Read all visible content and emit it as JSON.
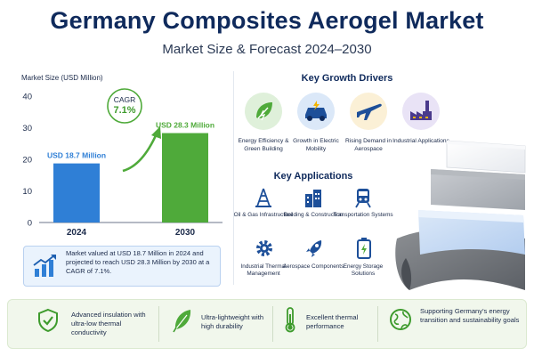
{
  "header": {
    "title": "Germany Composites Aerogel Market",
    "subtitle": "Market Size & Forecast 2024–2030"
  },
  "chart_data": {
    "type": "bar",
    "ylabel": "Market Size (USD Million)",
    "categories": [
      "2024",
      "2030"
    ],
    "values": [
      18.7,
      28.3
    ],
    "data_labels": [
      "USD 18.7 Million",
      "USD 28.3 Million"
    ],
    "yticks": [
      "0",
      "10",
      "20",
      "30",
      "40"
    ],
    "ylim": [
      0,
      40
    ],
    "grid": false,
    "bar_colors": [
      "#2f7fd6",
      "#4faa3a"
    ],
    "cagr_label": "CAGR",
    "cagr_value": "7.1%"
  },
  "summary": {
    "text": "Market valued at USD 18.7 Million in 2024 and projected to reach USD 28.3 Million by 2030 at a CAGR of 7.1%."
  },
  "drivers": {
    "title": "Key Growth Drivers",
    "items": [
      {
        "label": "Energy Efficiency & Green Building",
        "icon": "energy-leaf-icon",
        "bg": "#dff0da"
      },
      {
        "label": "Growth in Electric Mobility",
        "icon": "electric-car-icon",
        "bg": "#dbe8f8"
      },
      {
        "label": "Rising Demand in Aerospace",
        "icon": "airplane-icon",
        "bg": "#fbf0d6"
      },
      {
        "label": "Industrial Applications",
        "icon": "factory-icon",
        "bg": "#e9e3f6"
      }
    ]
  },
  "applications": {
    "title": "Key Applications",
    "items": [
      {
        "label": "Oil & Gas Infrastructure",
        "icon": "oil-rig-icon"
      },
      {
        "label": "Building & Construction",
        "icon": "buildings-icon"
      },
      {
        "label": "Transportation Systems",
        "icon": "train-icon"
      },
      {
        "label": "Industrial Thermal Management",
        "icon": "gear-icon"
      },
      {
        "label": "Aerospace Components",
        "icon": "rocket-icon"
      },
      {
        "label": "Energy Storage Solutions",
        "icon": "battery-icon"
      }
    ]
  },
  "features": [
    {
      "text": "Advanced insulation with ultra-low thermal conductivity",
      "icon": "shield-check-icon"
    },
    {
      "text": "Ultra-lightweight with high durability",
      "icon": "feather-icon"
    },
    {
      "text": "Excellent thermal performance",
      "icon": "thermometer-icon"
    },
    {
      "text": "Supporting Germany's energy transition and sustainability goals",
      "icon": "globe-leaf-icon"
    }
  ]
}
